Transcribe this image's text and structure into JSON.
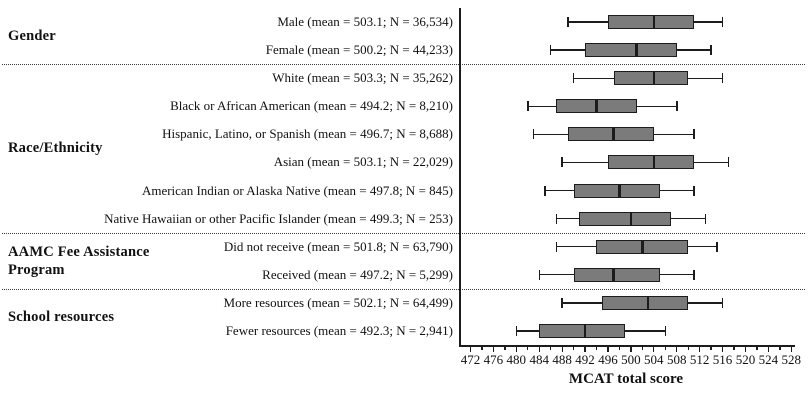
{
  "chart_data": {
    "type": "boxplot",
    "orientation": "horizontal",
    "title": "",
    "xlabel": "MCAT total score",
    "ylabel": "",
    "xlim": [
      470,
      528.3
    ],
    "xticks": [
      472,
      476,
      480,
      484,
      488,
      492,
      496,
      500,
      504,
      508,
      512,
      516,
      520,
      524,
      528
    ],
    "minor_tick_step": 2,
    "grid": false,
    "colors": {
      "box_fill": "#7b7b7b",
      "box_border": "#1c1c1c",
      "line": "#1c1c1c",
      "text": "#111111"
    },
    "groups": [
      {
        "label": "Gender",
        "items": [
          {
            "label": "Male (mean = 503.1; N = 36,534)",
            "mean": 503.1,
            "n": "36,534",
            "whisker_low": 489,
            "q1": 496,
            "median": 504,
            "q3": 511,
            "whisker_high": 516
          },
          {
            "label": "Female (mean = 500.2; N = 44,233)",
            "mean": 500.2,
            "n": "44,233",
            "whisker_low": 486,
            "q1": 492,
            "median": 501,
            "q3": 508,
            "whisker_high": 514
          }
        ]
      },
      {
        "label": "Race/Ethnicity",
        "items": [
          {
            "label": "White (mean = 503.3; N = 35,262)",
            "mean": 503.3,
            "n": "35,262",
            "whisker_low": 490,
            "q1": 497,
            "median": 504,
            "q3": 510,
            "whisker_high": 516
          },
          {
            "label": "Black or African American (mean = 494.2; N = 8,210)",
            "mean": 494.2,
            "n": "8,210",
            "whisker_low": 482,
            "q1": 487,
            "median": 494,
            "q3": 501,
            "whisker_high": 508
          },
          {
            "label": "Hispanic, Latino, or Spanish (mean = 496.7; N = 8,688)",
            "mean": 496.7,
            "n": "8,688",
            "whisker_low": 483,
            "q1": 489,
            "median": 497,
            "q3": 504,
            "whisker_high": 511
          },
          {
            "label": "Asian (mean = 503.1; N = 22,029)",
            "mean": 503.1,
            "n": "22,029",
            "whisker_low": 488,
            "q1": 496,
            "median": 504,
            "q3": 511,
            "whisker_high": 517
          },
          {
            "label": "American Indian or Alaska Native (mean = 497.8; N = 845)",
            "mean": 497.8,
            "n": "845",
            "whisker_low": 485,
            "q1": 490,
            "median": 498,
            "q3": 505,
            "whisker_high": 511
          },
          {
            "label": "Native Hawaiian or other Pacific Islander (mean = 499.3; N = 253)",
            "mean": 499.3,
            "n": "253",
            "whisker_low": 487,
            "q1": 491,
            "median": 500,
            "q3": 507,
            "whisker_high": 513
          }
        ]
      },
      {
        "label": "AAMC Fee Assistance Program",
        "items": [
          {
            "label": "Did not receive (mean = 501.8; N = 63,790)",
            "mean": 501.8,
            "n": "63,790",
            "whisker_low": 487,
            "q1": 494,
            "median": 502,
            "q3": 510,
            "whisker_high": 515
          },
          {
            "label": "Received (mean = 497.2; N = 5,299)",
            "mean": 497.2,
            "n": "5,299",
            "whisker_low": 484,
            "q1": 490,
            "median": 497,
            "q3": 505,
            "whisker_high": 511
          }
        ]
      },
      {
        "label": "School resources",
        "items": [
          {
            "label": "More resources (mean = 502.1; N = 64,499)",
            "mean": 502.1,
            "n": "64,499",
            "whisker_low": 488,
            "q1": 495,
            "median": 503,
            "q3": 510,
            "whisker_high": 516
          },
          {
            "label": "Fewer resources (mean = 492.3; N = 2,941)",
            "mean": 492.3,
            "n": "2,941",
            "whisker_low": 480,
            "q1": 484,
            "median": 492,
            "q3": 499,
            "whisker_high": 506
          }
        ]
      }
    ]
  }
}
